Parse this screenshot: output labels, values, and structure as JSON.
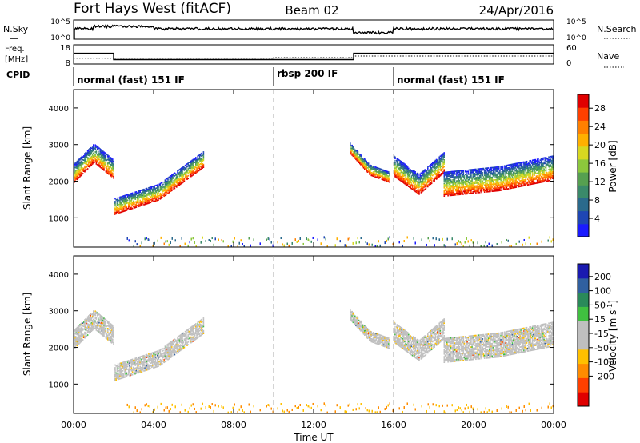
{
  "header": {
    "title": "Fort Hays West (fitACF)",
    "beam": "Beam 02",
    "date": "24/Apr/2016"
  },
  "noise_panel": {
    "left_label": "N.Sky",
    "right_label": "N.Search",
    "left_ticks": [
      "10^5",
      "10^0"
    ],
    "right_ticks": [
      "10^5",
      "10^0"
    ]
  },
  "freq_panel": {
    "left_label_line1": "Freq.",
    "left_label_line2": "[MHz]",
    "right_label": "Nave",
    "left_ticks": [
      "18",
      "8"
    ],
    "right_ticks": [
      "60",
      "0"
    ],
    "steps": [
      {
        "start_hour": 0.0,
        "end_hour": 2.0,
        "freq": 13.6
      },
      {
        "start_hour": 2.0,
        "end_hour": 14.0,
        "freq": 10.3
      },
      {
        "start_hour": 14.0,
        "end_hour": 24.0,
        "freq": 13.6
      }
    ],
    "nave_steps": [
      {
        "start_hour": 0.0,
        "end_hour": 2.0,
        "nave": 18
      },
      {
        "start_hour": 2.0,
        "end_hour": 10.0,
        "nave": 15
      },
      {
        "start_hour": 10.0,
        "end_hour": 14.0,
        "nave": 20
      },
      {
        "start_hour": 14.0,
        "end_hour": 24.0,
        "nave": 25
      }
    ]
  },
  "cpid": {
    "label": "CPID",
    "segments": [
      {
        "label": "normal (fast) 151 IF",
        "start_hour": 0
      },
      {
        "label": "rbsp 200 IF",
        "start_hour": 10
      },
      {
        "label": "normal (fast) 151 IF",
        "start_hour": 16
      }
    ]
  },
  "power_panel": {
    "ylabel": "Slant Range [km]",
    "colorbar_label": "Power [dB]",
    "colorbar_ticks": [
      "28",
      "24",
      "20",
      "16",
      "12",
      "8",
      "4"
    ]
  },
  "velocity_panel": {
    "ylabel": "Slant Range [km]",
    "colorbar_label": "Velocity [m s",
    "colorbar_label_sup": "-1",
    "colorbar_label_end": "]",
    "colorbar_ticks": [
      "200",
      "100",
      "50",
      "15",
      "-15",
      "-50",
      "-100",
      "-200"
    ]
  },
  "chart_data": {
    "type": "heatmap",
    "xlabel": "Time UT",
    "x_ticks": [
      "00:00",
      "04:00",
      "08:00",
      "12:00",
      "16:00",
      "20:00",
      "00:00"
    ],
    "xlim": [
      0,
      24
    ],
    "ylim": [
      200,
      4500
    ],
    "y_ticks": [
      "4000",
      "3000",
      "2000",
      "1000"
    ],
    "y_tick_values": [
      4000,
      3000,
      2000,
      1000
    ],
    "power_range_db": [
      0,
      31
    ],
    "velocity_range": [
      -250,
      250
    ],
    "mode_change_hours": [
      10,
      16
    ],
    "echo_bands": [
      {
        "start_hour": 0.0,
        "end_hour": 2.0,
        "center_km": [
          2200,
          2750,
          2300
        ],
        "width_km": 500
      },
      {
        "start_hour": 2.0,
        "end_hour": 6.5,
        "center_km": [
          1300,
          1700,
          2600
        ],
        "width_km": 450
      },
      {
        "start_hour": 13.8,
        "end_hour": 15.8,
        "center_km": [
          2900,
          2300,
          2100
        ],
        "width_km": 300
      },
      {
        "start_hour": 16.0,
        "end_hour": 18.5,
        "center_km": [
          2400,
          1900,
          2500
        ],
        "width_km": 550
      },
      {
        "start_hour": 18.5,
        "end_hour": 24.0,
        "center_km": [
          1900,
          2050,
          2350
        ],
        "width_km": 650
      }
    ]
  }
}
